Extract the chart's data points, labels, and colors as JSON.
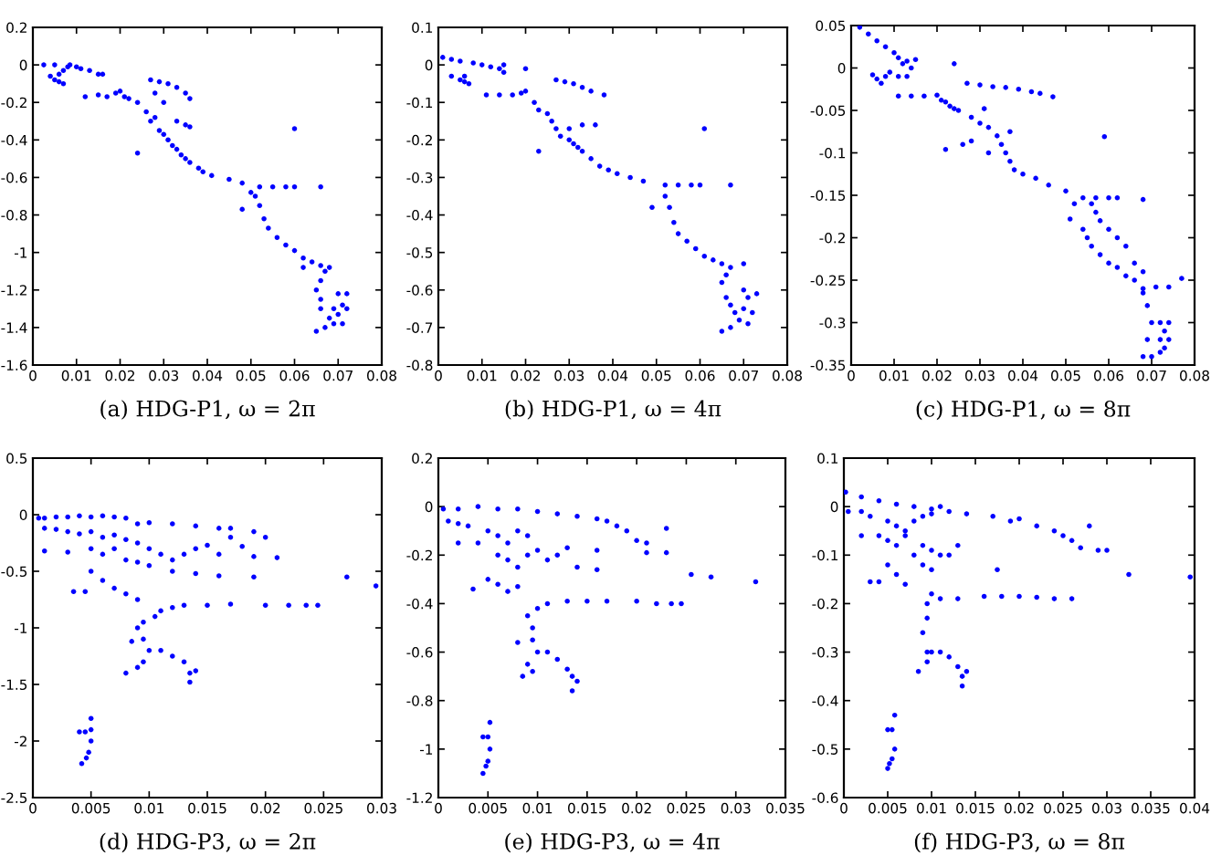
{
  "chart_data": [
    {
      "type": "scatter",
      "title": "(a) HDG-P1, ω = 2π",
      "color": "#0000ff",
      "marker": "circle",
      "x": [
        0.0025,
        0.005,
        0.0085,
        0.01,
        0.011,
        0.013,
        0.015,
        0.016,
        0.004,
        0.005,
        0.006,
        0.007,
        0.006,
        0.007,
        0.008,
        0.012,
        0.015,
        0.017,
        0.019,
        0.02,
        0.021,
        0.022,
        0.024,
        0.026,
        0.027,
        0.028,
        0.029,
        0.03,
        0.031,
        0.032,
        0.033,
        0.034,
        0.035,
        0.036,
        0.038,
        0.039,
        0.027,
        0.029,
        0.031,
        0.033,
        0.035,
        0.036,
        0.028,
        0.03,
        0.033,
        0.035,
        0.036,
        0.024,
        0.06,
        0.041,
        0.045,
        0.048,
        0.05,
        0.052,
        0.055,
        0.058,
        0.06,
        0.066,
        0.051,
        0.052,
        0.053,
        0.054,
        0.056,
        0.058,
        0.06,
        0.062,
        0.048,
        0.064,
        0.066,
        0.068,
        0.062,
        0.067,
        0.066,
        0.065,
        0.066,
        0.066,
        0.065,
        0.067,
        0.069,
        0.07,
        0.071,
        0.072,
        0.07,
        0.069,
        0.068,
        0.071,
        0.072
      ],
      "values": [
        0.0,
        0.0,
        0.0,
        -0.01,
        -0.02,
        -0.03,
        -0.05,
        -0.05,
        -0.06,
        -0.08,
        -0.09,
        -0.1,
        -0.05,
        -0.03,
        -0.01,
        -0.17,
        -0.16,
        -0.17,
        -0.15,
        -0.14,
        -0.17,
        -0.18,
        -0.2,
        -0.25,
        -0.3,
        -0.28,
        -0.35,
        -0.37,
        -0.4,
        -0.43,
        -0.45,
        -0.48,
        -0.5,
        -0.52,
        -0.55,
        -0.57,
        -0.08,
        -0.09,
        -0.1,
        -0.12,
        -0.15,
        -0.18,
        -0.15,
        -0.2,
        -0.3,
        -0.32,
        -0.33,
        -0.47,
        -0.34,
        -0.59,
        -0.61,
        -0.63,
        -0.68,
        -0.65,
        -0.65,
        -0.65,
        -0.65,
        -0.65,
        -0.7,
        -0.75,
        -0.82,
        -0.87,
        -0.92,
        -0.96,
        -0.99,
        -1.03,
        -0.77,
        -1.05,
        -1.07,
        -1.08,
        -1.08,
        -1.1,
        -1.15,
        -1.2,
        -1.25,
        -1.3,
        -1.42,
        -1.4,
        -1.38,
        -1.33,
        -1.28,
        -1.22,
        -1.22,
        -1.3,
        -1.35,
        -1.38,
        -1.3
      ],
      "xlim": [
        0,
        0.08
      ],
      "ylim": [
        -1.6,
        0.2
      ],
      "xticks": [
        0,
        0.01,
        0.02,
        0.03,
        0.04,
        0.05,
        0.06,
        0.07,
        0.08
      ],
      "yticks": [
        -1.6,
        -1.4,
        -1.2,
        -1,
        -0.8,
        -0.6,
        -0.4,
        -0.2,
        0,
        0.2
      ]
    },
    {
      "type": "scatter",
      "title": "(b) HDG-P1, ω = 4π",
      "color": "#0000ff",
      "marker": "circle",
      "x": [
        0.001,
        0.003,
        0.005,
        0.008,
        0.01,
        0.012,
        0.014,
        0.015,
        0.015,
        0.003,
        0.005,
        0.006,
        0.007,
        0.006,
        0.011,
        0.014,
        0.017,
        0.019,
        0.02,
        0.02,
        0.022,
        0.023,
        0.025,
        0.026,
        0.027,
        0.028,
        0.03,
        0.031,
        0.032,
        0.033,
        0.035,
        0.037,
        0.039,
        0.027,
        0.029,
        0.031,
        0.033,
        0.035,
        0.038,
        0.03,
        0.033,
        0.036,
        0.023,
        0.061,
        0.041,
        0.044,
        0.047,
        0.049,
        0.052,
        0.055,
        0.058,
        0.06,
        0.067,
        0.052,
        0.053,
        0.054,
        0.055,
        0.057,
        0.059,
        0.061,
        0.063,
        0.065,
        0.067,
        0.07,
        0.066,
        0.065,
        0.066,
        0.067,
        0.065,
        0.067,
        0.069,
        0.07,
        0.071,
        0.073,
        0.07,
        0.068,
        0.071,
        0.072
      ],
      "values": [
        0.02,
        0.015,
        0.01,
        0.005,
        0.0,
        -0.005,
        -0.01,
        -0.02,
        0.0,
        -0.03,
        -0.04,
        -0.045,
        -0.05,
        -0.03,
        -0.08,
        -0.08,
        -0.08,
        -0.075,
        -0.07,
        -0.01,
        -0.1,
        -0.12,
        -0.13,
        -0.15,
        -0.17,
        -0.19,
        -0.2,
        -0.21,
        -0.22,
        -0.23,
        -0.25,
        -0.27,
        -0.28,
        -0.04,
        -0.045,
        -0.05,
        -0.06,
        -0.07,
        -0.08,
        -0.17,
        -0.16,
        -0.16,
        -0.23,
        -0.17,
        -0.29,
        -0.3,
        -0.31,
        -0.38,
        -0.32,
        -0.32,
        -0.32,
        -0.32,
        -0.32,
        -0.35,
        -0.38,
        -0.42,
        -0.45,
        -0.47,
        -0.49,
        -0.51,
        -0.52,
        -0.53,
        -0.54,
        -0.53,
        -0.56,
        -0.58,
        -0.62,
        -0.64,
        -0.71,
        -0.7,
        -0.68,
        -0.65,
        -0.62,
        -0.61,
        -0.6,
        -0.66,
        -0.69,
        -0.66
      ],
      "xlim": [
        0,
        0.08
      ],
      "ylim": [
        -0.8,
        0.1
      ],
      "xticks": [
        0,
        0.01,
        0.02,
        0.03,
        0.04,
        0.05,
        0.06,
        0.07,
        0.08
      ],
      "yticks": [
        -0.8,
        -0.7,
        -0.6,
        -0.5,
        -0.4,
        -0.3,
        -0.2,
        -0.1,
        0,
        0.1
      ]
    },
    {
      "type": "scatter",
      "title": "(c) HDG-P1, ω = 8π",
      "color": "#0000ff",
      "marker": "circle",
      "x": [
        0.002,
        0.004,
        0.006,
        0.008,
        0.01,
        0.011,
        0.012,
        0.013,
        0.015,
        0.014,
        0.005,
        0.006,
        0.007,
        0.008,
        0.009,
        0.011,
        0.013,
        0.011,
        0.014,
        0.017,
        0.02,
        0.021,
        0.022,
        0.023,
        0.024,
        0.025,
        0.024,
        0.027,
        0.03,
        0.033,
        0.036,
        0.039,
        0.042,
        0.044,
        0.047,
        0.022,
        0.026,
        0.028,
        0.031,
        0.059,
        0.028,
        0.03,
        0.032,
        0.034,
        0.035,
        0.036,
        0.037,
        0.038,
        0.037,
        0.032,
        0.04,
        0.043,
        0.046,
        0.05,
        0.054,
        0.057,
        0.06,
        0.062,
        0.068,
        0.052,
        0.051,
        0.054,
        0.055,
        0.056,
        0.058,
        0.06,
        0.062,
        0.056,
        0.057,
        0.058,
        0.06,
        0.062,
        0.064,
        0.066,
        0.068,
        0.064,
        0.066,
        0.068,
        0.071,
        0.074,
        0.077,
        0.068,
        0.069,
        0.07,
        0.069,
        0.068,
        0.07,
        0.072,
        0.073,
        0.074,
        0.073,
        0.074,
        0.072,
        0.072
      ],
      "values": [
        0.048,
        0.04,
        0.032,
        0.025,
        0.018,
        0.012,
        0.005,
        0.008,
        0.01,
        0.0,
        -0.008,
        -0.013,
        -0.018,
        -0.01,
        -0.005,
        -0.01,
        -0.01,
        -0.033,
        -0.033,
        -0.033,
        -0.032,
        -0.038,
        -0.04,
        -0.045,
        -0.048,
        -0.05,
        0.005,
        -0.018,
        -0.02,
        -0.022,
        -0.023,
        -0.025,
        -0.028,
        -0.03,
        -0.034,
        -0.096,
        -0.09,
        -0.086,
        -0.048,
        -0.081,
        -0.058,
        -0.065,
        -0.07,
        -0.08,
        -0.09,
        -0.1,
        -0.11,
        -0.12,
        -0.075,
        -0.1,
        -0.125,
        -0.13,
        -0.138,
        -0.145,
        -0.153,
        -0.153,
        -0.153,
        -0.153,
        -0.155,
        -0.16,
        -0.178,
        -0.19,
        -0.2,
        -0.21,
        -0.22,
        -0.23,
        -0.235,
        -0.16,
        -0.17,
        -0.18,
        -0.19,
        -0.2,
        -0.21,
        -0.23,
        -0.24,
        -0.245,
        -0.25,
        -0.26,
        -0.258,
        -0.258,
        -0.248,
        -0.265,
        -0.28,
        -0.3,
        -0.32,
        -0.34,
        -0.34,
        -0.335,
        -0.33,
        -0.32,
        -0.31,
        -0.3,
        -0.3,
        -0.32
      ],
      "xlim": [
        0,
        0.08
      ],
      "ylim": [
        -0.35,
        0.05
      ],
      "xticks": [
        0,
        0.01,
        0.02,
        0.03,
        0.04,
        0.05,
        0.06,
        0.07,
        0.08
      ],
      "yticks": [
        -0.35,
        -0.3,
        -0.25,
        -0.2,
        -0.15,
        -0.1,
        -0.05,
        0,
        0.05
      ]
    },
    {
      "type": "scatter",
      "title": "(d) HDG-P3, ω = 2π",
      "color": "#0000ff",
      "marker": "circle",
      "x": [
        0.0005,
        0.001,
        0.002,
        0.003,
        0.004,
        0.005,
        0.006,
        0.007,
        0.008,
        0.001,
        0.002,
        0.003,
        0.004,
        0.005,
        0.009,
        0.01,
        0.012,
        0.014,
        0.016,
        0.006,
        0.007,
        0.008,
        0.009,
        0.01,
        0.011,
        0.007,
        0.008,
        0.009,
        0.01,
        0.012,
        0.013,
        0.014,
        0.006,
        0.005,
        0.001,
        0.003,
        0.017,
        0.019,
        0.02,
        0.017,
        0.018,
        0.019,
        0.021,
        0.015,
        0.016,
        0.012,
        0.014,
        0.016,
        0.019,
        0.027,
        0.0295,
        0.005,
        0.006,
        0.007,
        0.0035,
        0.0045,
        0.008,
        0.009,
        0.011,
        0.012,
        0.013,
        0.015,
        0.017,
        0.02,
        0.022,
        0.0235,
        0.0245,
        0.0105,
        0.0095,
        0.009,
        0.0095,
        0.01,
        0.0085,
        0.008,
        0.009,
        0.0095,
        0.011,
        0.012,
        0.013,
        0.0135,
        0.014,
        0.0135,
        0.005,
        0.005,
        0.004,
        0.0045,
        0.005,
        0.0048,
        0.0042,
        0.0046
      ],
      "values": [
        -0.03,
        -0.03,
        -0.02,
        -0.02,
        -0.01,
        -0.02,
        -0.01,
        -0.02,
        -0.03,
        -0.12,
        -0.13,
        -0.15,
        -0.17,
        -0.15,
        -0.08,
        -0.07,
        -0.08,
        -0.1,
        -0.12,
        -0.2,
        -0.18,
        -0.22,
        -0.25,
        -0.3,
        -0.35,
        -0.3,
        -0.4,
        -0.42,
        -0.45,
        -0.4,
        -0.35,
        -0.3,
        -0.35,
        -0.3,
        -0.32,
        -0.33,
        -0.12,
        -0.15,
        -0.2,
        -0.2,
        -0.28,
        -0.37,
        -0.38,
        -0.27,
        -0.35,
        -0.5,
        -0.52,
        -0.54,
        -0.55,
        -0.55,
        -0.63,
        -0.5,
        -0.58,
        -0.65,
        -0.68,
        -0.68,
        -0.7,
        -0.75,
        -0.85,
        -0.82,
        -0.8,
        -0.8,
        -0.79,
        -0.8,
        -0.8,
        -0.8,
        -0.8,
        -0.9,
        -0.95,
        -1.0,
        -1.1,
        -1.2,
        -1.12,
        -1.4,
        -1.35,
        -1.3,
        -1.2,
        -1.25,
        -1.3,
        -1.4,
        -1.38,
        -1.48,
        -1.8,
        -1.9,
        -1.92,
        -1.92,
        -2.0,
        -2.1,
        -2.2,
        -2.15
      ],
      "xlim": [
        0,
        0.03
      ],
      "ylim": [
        -2.5,
        0.5
      ],
      "xticks": [
        0,
        0.005,
        0.01,
        0.015,
        0.02,
        0.025,
        0.03
      ],
      "yticks": [
        -2.5,
        -2,
        -1.5,
        -1,
        -0.5,
        0,
        0.5
      ]
    },
    {
      "type": "scatter",
      "title": "(e) HDG-P3, ω = 4π",
      "color": "#0000ff",
      "marker": "circle",
      "x": [
        0.0005,
        0.002,
        0.004,
        0.006,
        0.008,
        0.01,
        0.012,
        0.014,
        0.016,
        0.001,
        0.002,
        0.003,
        0.005,
        0.006,
        0.007,
        0.008,
        0.009,
        0.002,
        0.004,
        0.006,
        0.007,
        0.008,
        0.009,
        0.01,
        0.011,
        0.012,
        0.013,
        0.0035,
        0.005,
        0.006,
        0.007,
        0.008,
        0.017,
        0.018,
        0.019,
        0.02,
        0.021,
        0.023,
        0.021,
        0.023,
        0.016,
        0.014,
        0.016,
        0.0255,
        0.0275,
        0.032,
        0.009,
        0.01,
        0.011,
        0.013,
        0.015,
        0.017,
        0.02,
        0.022,
        0.0235,
        0.0245,
        0.0095,
        0.0095,
        0.01,
        0.009,
        0.0085,
        0.008,
        0.0095,
        0.011,
        0.012,
        0.013,
        0.0135,
        0.014,
        0.0135,
        0.0052,
        0.005,
        0.0045,
        0.0052,
        0.005,
        0.0045,
        0.0048
      ],
      "values": [
        -0.01,
        -0.01,
        0.0,
        -0.01,
        -0.01,
        -0.02,
        -0.03,
        -0.04,
        -0.05,
        -0.06,
        -0.07,
        -0.08,
        -0.1,
        -0.12,
        -0.15,
        -0.1,
        -0.12,
        -0.15,
        -0.15,
        -0.2,
        -0.22,
        -0.25,
        -0.2,
        -0.18,
        -0.22,
        -0.2,
        -0.17,
        -0.34,
        -0.3,
        -0.32,
        -0.35,
        -0.33,
        -0.06,
        -0.08,
        -0.1,
        -0.14,
        -0.15,
        -0.09,
        -0.19,
        -0.19,
        -0.18,
        -0.25,
        -0.26,
        -0.28,
        -0.29,
        -0.31,
        -0.45,
        -0.42,
        -0.4,
        -0.39,
        -0.39,
        -0.39,
        -0.39,
        -0.4,
        -0.4,
        -0.4,
        -0.5,
        -0.55,
        -0.6,
        -0.65,
        -0.7,
        -0.56,
        -0.68,
        -0.6,
        -0.63,
        -0.67,
        -0.7,
        -0.72,
        -0.76,
        -0.89,
        -0.95,
        -0.95,
        -1.0,
        -1.05,
        -1.1,
        -1.07
      ],
      "xlim": [
        0,
        0.035
      ],
      "ylim": [
        -1.2,
        0.2
      ],
      "xticks": [
        0,
        0.005,
        0.01,
        0.015,
        0.02,
        0.025,
        0.03,
        0.035
      ],
      "yticks": [
        -1.2,
        -1,
        -0.8,
        -0.6,
        -0.4,
        -0.2,
        0,
        0.2
      ]
    },
    {
      "type": "scatter",
      "title": "(f) HDG-P3, ω = 8π",
      "color": "#0000ff",
      "marker": "circle",
      "x": [
        0.0002,
        0.002,
        0.004,
        0.006,
        0.008,
        0.01,
        0.0005,
        0.002,
        0.003,
        0.005,
        0.006,
        0.007,
        0.008,
        0.009,
        0.01,
        0.012,
        0.011,
        0.004,
        0.005,
        0.006,
        0.007,
        0.002,
        0.009,
        0.01,
        0.011,
        0.012,
        0.013,
        0.008,
        0.009,
        0.01,
        0.005,
        0.006,
        0.007,
        0.003,
        0.004,
        0.014,
        0.017,
        0.019,
        0.02,
        0.022,
        0.024,
        0.025,
        0.026,
        0.027,
        0.029,
        0.03,
        0.028,
        0.0175,
        0.0325,
        0.0395,
        0.01,
        0.011,
        0.013,
        0.016,
        0.018,
        0.02,
        0.022,
        0.024,
        0.026,
        0.0095,
        0.0095,
        0.009,
        0.0095,
        0.0095,
        0.0085,
        0.01,
        0.011,
        0.012,
        0.013,
        0.0135,
        0.0135,
        0.014,
        0.0058,
        0.0055,
        0.005,
        0.0058,
        0.0055,
        0.005,
        0.0052
      ],
      "values": [
        0.03,
        0.02,
        0.012,
        0.005,
        0.0,
        -0.005,
        -0.01,
        -0.01,
        -0.02,
        -0.03,
        -0.04,
        -0.05,
        -0.03,
        -0.02,
        -0.015,
        -0.01,
        0.0,
        -0.06,
        -0.07,
        -0.08,
        -0.06,
        -0.06,
        -0.08,
        -0.09,
        -0.1,
        -0.1,
        -0.08,
        -0.1,
        -0.12,
        -0.13,
        -0.12,
        -0.14,
        -0.16,
        -0.155,
        -0.155,
        -0.015,
        -0.02,
        -0.03,
        -0.025,
        -0.04,
        -0.05,
        -0.06,
        -0.07,
        -0.085,
        -0.09,
        -0.09,
        -0.04,
        -0.13,
        -0.14,
        -0.145,
        -0.18,
        -0.19,
        -0.19,
        -0.185,
        -0.185,
        -0.185,
        -0.187,
        -0.19,
        -0.19,
        -0.2,
        -0.23,
        -0.26,
        -0.3,
        -0.32,
        -0.34,
        -0.3,
        -0.3,
        -0.31,
        -0.33,
        -0.35,
        -0.37,
        -0.34,
        -0.43,
        -0.46,
        -0.46,
        -0.5,
        -0.52,
        -0.54,
        -0.53
      ],
      "xlim": [
        0,
        0.04
      ],
      "ylim": [
        -0.6,
        0.1
      ],
      "xticks": [
        0,
        0.005,
        0.01,
        0.015,
        0.02,
        0.025,
        0.03,
        0.035,
        0.04
      ],
      "yticks": [
        -0.6,
        -0.5,
        -0.4,
        -0.3,
        -0.2,
        -0.1,
        0,
        0.1
      ]
    }
  ]
}
